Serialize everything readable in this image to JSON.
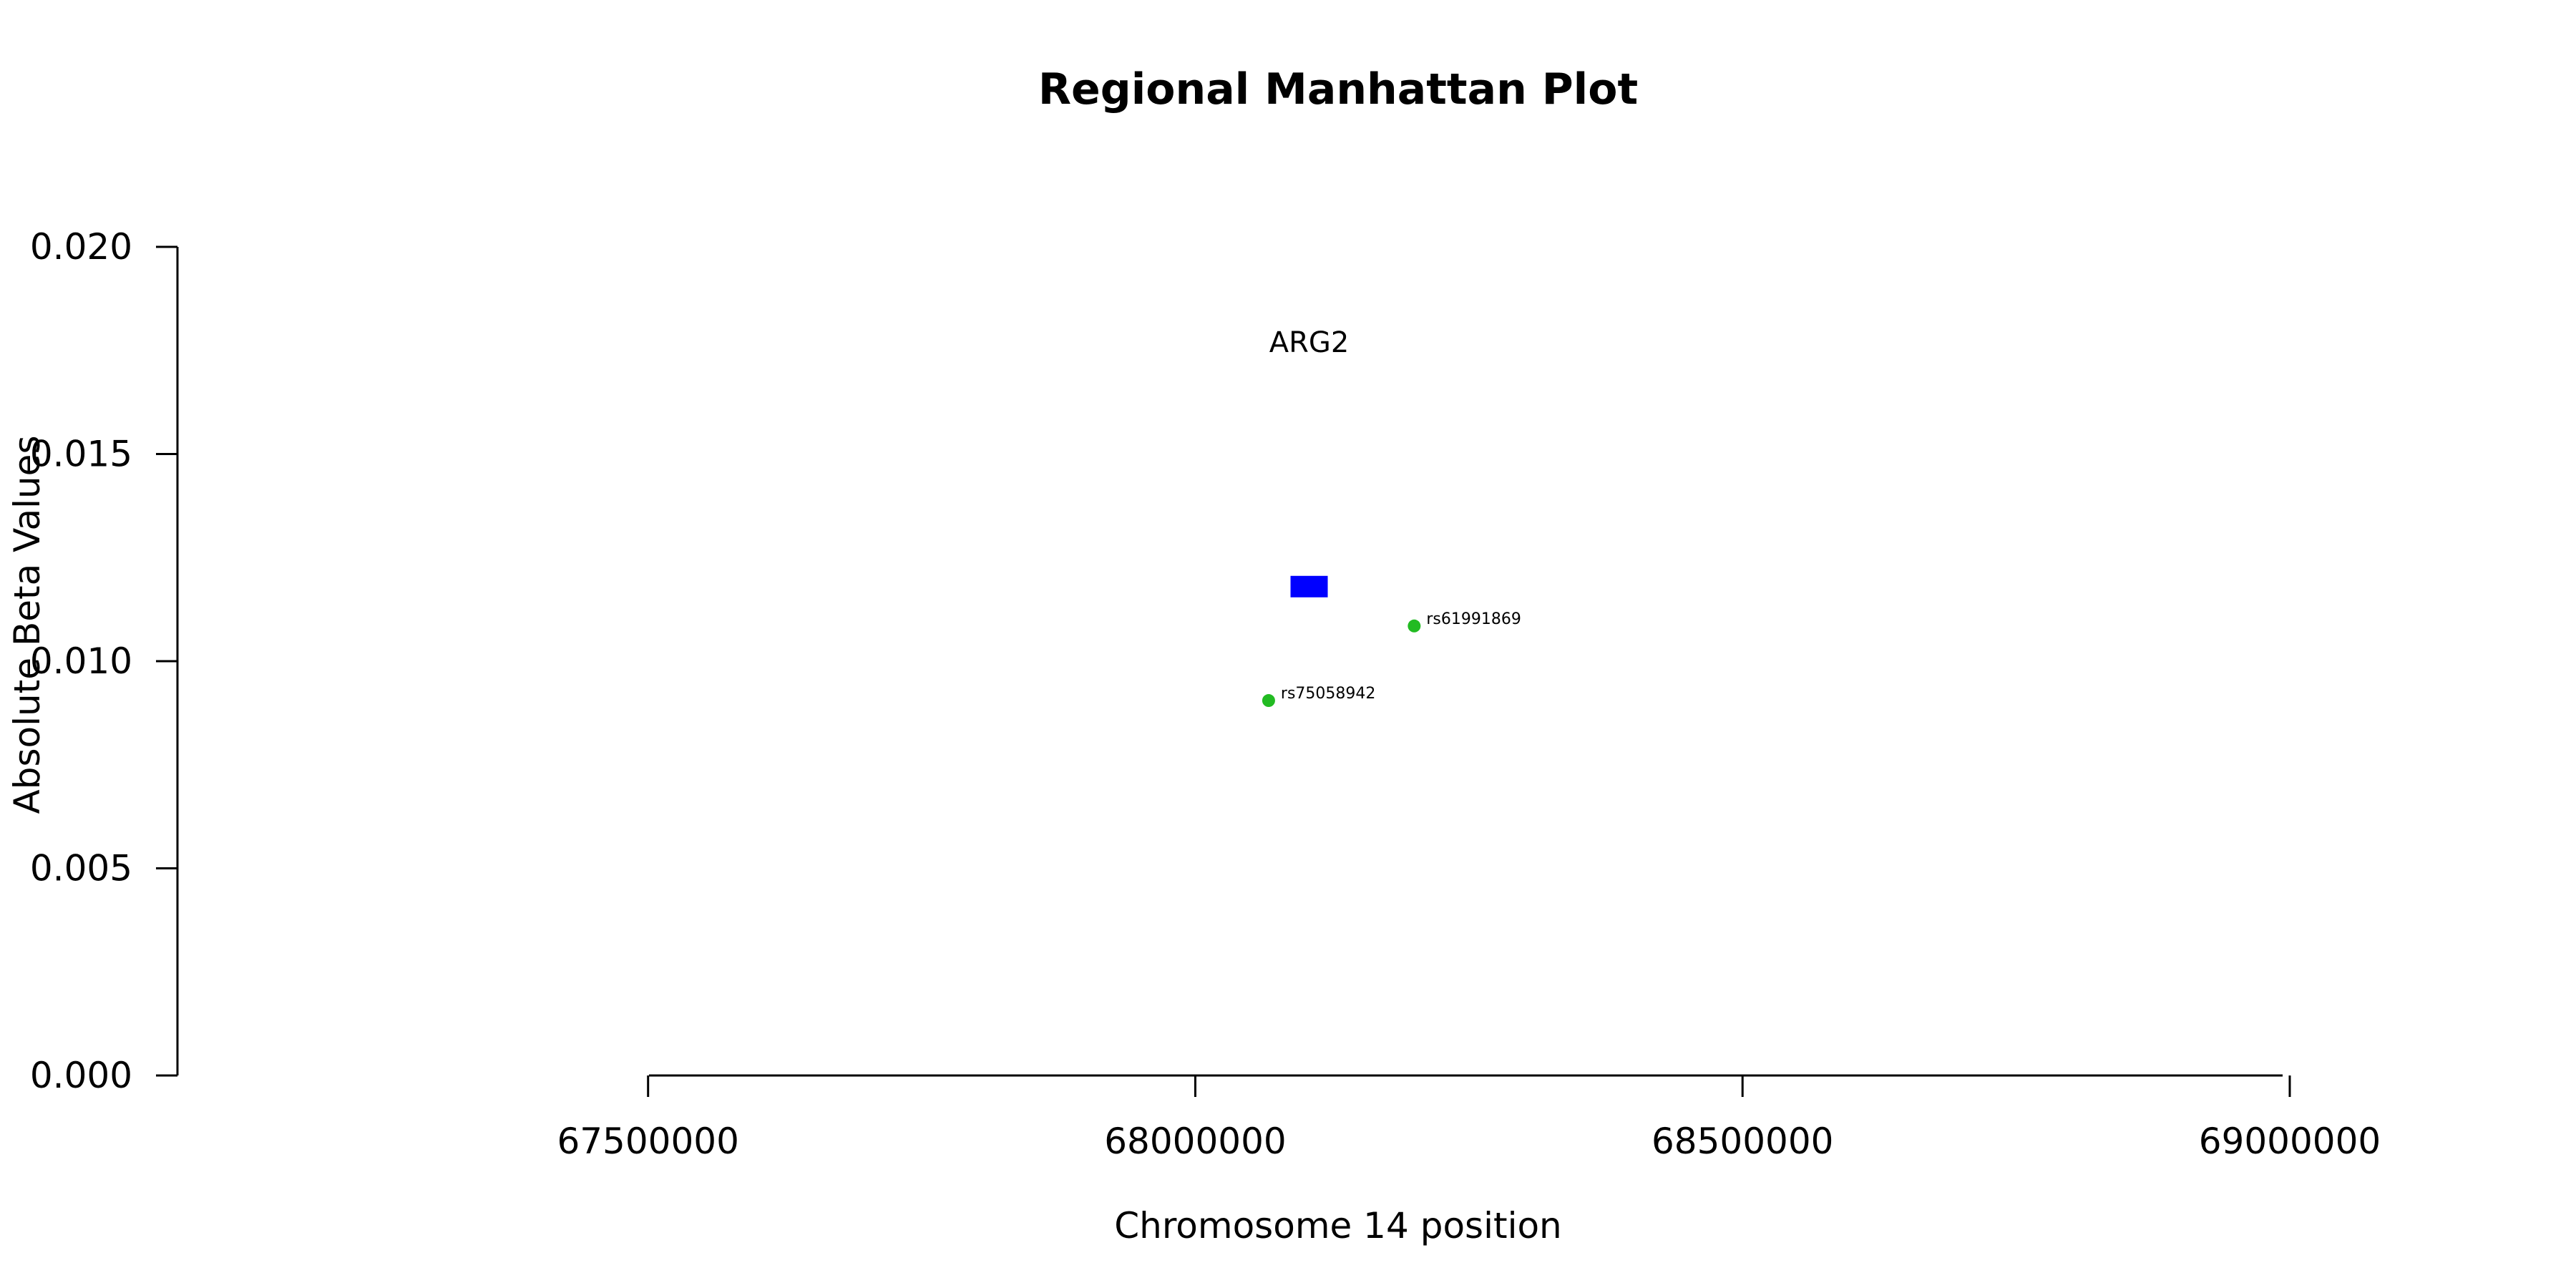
{
  "chart_data": {
    "type": "scatter",
    "title": "Regional Manhattan Plot",
    "xlabel": "Chromosome 14 position",
    "ylabel": "Absolute Beta Values",
    "xlim": [
      67070000,
      69170000
    ],
    "ylim": [
      0,
      0.02
    ],
    "x_ticks": [
      67500000,
      68000000,
      68500000,
      69000000
    ],
    "x_tick_labels": [
      "67500000",
      "68000000",
      "68500000",
      "69000000"
    ],
    "y_ticks": [
      0,
      0.005,
      0.01,
      0.015,
      0.02
    ],
    "y_tick_labels": [
      "0.000",
      "0.005",
      "0.010",
      "0.015",
      "0.020"
    ],
    "grid": false,
    "gene": {
      "label": "ARG2",
      "x_start": 68087000,
      "x_end": 68121000,
      "y": 0.0118,
      "color": "#0000ff"
    },
    "points": [
      {
        "label": "rs75058942",
        "x": 68067000,
        "y": 0.00905,
        "color": "#22bb22"
      },
      {
        "label": "rs61991869",
        "x": 68200000,
        "y": 0.01085,
        "color": "#22bb22"
      }
    ]
  }
}
